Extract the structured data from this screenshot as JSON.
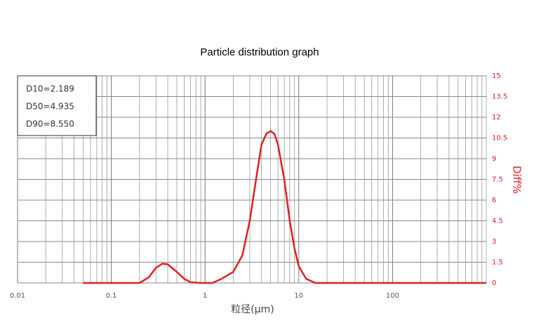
{
  "chart_data": {
    "type": "line",
    "title": "Particle distribution graph",
    "x_label": "粒径(μm)",
    "y_label": "Diff%",
    "annotations": [
      "D10=2.189",
      "D50=4.935",
      "D90=8.550"
    ],
    "x": [
      0.05,
      0.1,
      0.2,
      0.25,
      0.3,
      0.35,
      0.4,
      0.5,
      0.6,
      0.7,
      0.9,
      1.2,
      1.5,
      2,
      2.5,
      3,
      3.5,
      4,
      4.5,
      5,
      5.5,
      6,
      7,
      8,
      9,
      10,
      12,
      15,
      20,
      100,
      1000
    ],
    "series": [
      {
        "color": "#e02020",
        "values": [
          0,
          0,
          0,
          0.4,
          1.1,
          1.4,
          1.35,
          0.8,
          0.3,
          0.05,
          0,
          0,
          0.3,
          0.8,
          2,
          4.5,
          7.5,
          10,
          10.8,
          11,
          10.8,
          10,
          7.5,
          4.5,
          2.5,
          1.2,
          0.3,
          0,
          0,
          0,
          0
        ]
      }
    ],
    "log_x": true,
    "xlim": [
      0.01,
      1000
    ],
    "xticks": [
      0.01,
      0.1,
      1,
      10,
      100
    ],
    "ylim": [
      0,
      15
    ],
    "yticks": [
      0,
      1.5,
      3,
      4.5,
      6,
      7.5,
      9,
      10.5,
      12,
      13.5,
      15
    ],
    "y_axis_side": "right",
    "grid": true
  }
}
